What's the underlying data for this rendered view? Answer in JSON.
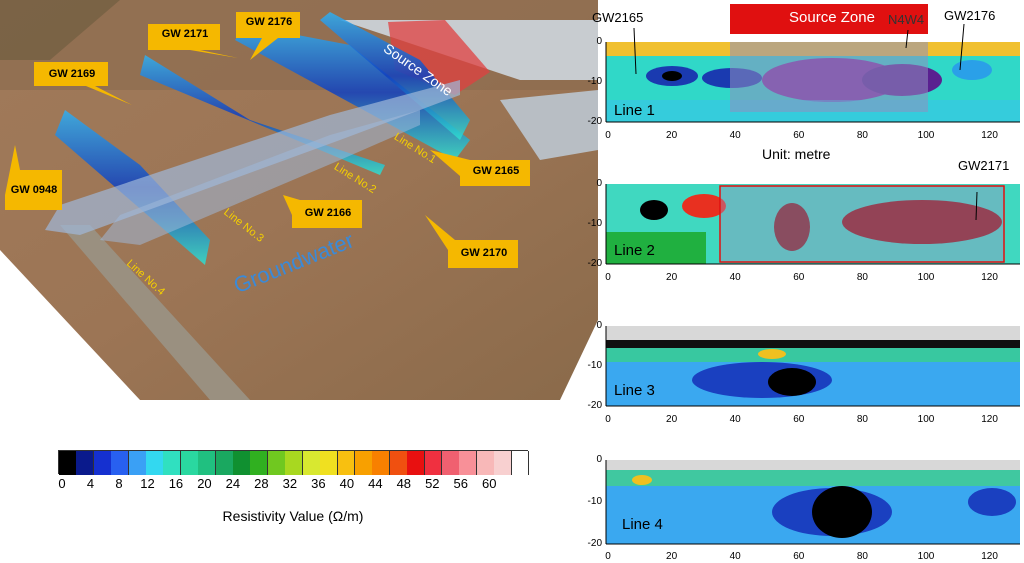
{
  "aerial": {
    "source_zone": "Source Zone",
    "groundwater": "Groundwater",
    "wells": [
      "GW 2176",
      "GW 2171",
      "GW 2169",
      "GW 0948",
      "GW 2165",
      "GW 2166",
      "GW 2170"
    ],
    "lines": [
      "Line No.1",
      "Line No.2",
      "Line No.3",
      "Line No.4"
    ]
  },
  "legend": {
    "title": "Resistivity Value (Ω/m)",
    "ticks": [
      "0",
      "4",
      "8",
      "12",
      "16",
      "20",
      "24",
      "28",
      "32",
      "36",
      "40",
      "44",
      "48",
      "52",
      "56",
      "60"
    ],
    "colors": [
      "#000000",
      "#0a1a8c",
      "#1530d0",
      "#2860f0",
      "#3aa0f5",
      "#33d8f0",
      "#30e0c0",
      "#2ad8a0",
      "#20c080",
      "#1aa860",
      "#109030",
      "#30b020",
      "#70c820",
      "#a8d820",
      "#d8e830",
      "#f0e020",
      "#f8c010",
      "#f8a000",
      "#f88000",
      "#f05010",
      "#e81010",
      "#f03040",
      "#f06070",
      "#f89098",
      "#f8b8b8",
      "#f8d0d0",
      "#ffffff"
    ]
  },
  "profiles": {
    "source_zone": "Source Zone",
    "unit": "Unit: metre",
    "x_ticks": [
      "0",
      "20",
      "40",
      "60",
      "80",
      "100",
      "120"
    ],
    "y_ticks": [
      "0",
      "-10",
      "-20"
    ],
    "line1": {
      "label": "Line 1",
      "wells": [
        "GW2165",
        "N4W4",
        "GW2176"
      ]
    },
    "line2": {
      "label": "Line 2",
      "wells": [
        "GW2171"
      ]
    },
    "line3": {
      "label": "Line 3"
    },
    "line4": {
      "label": "Line 4"
    }
  }
}
